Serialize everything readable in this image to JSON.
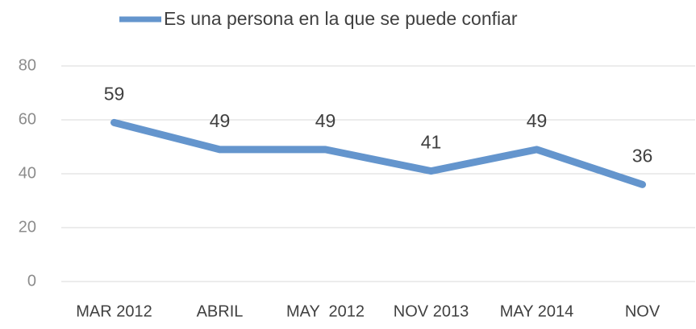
{
  "chart_data": {
    "type": "line",
    "categories": [
      "MAR 2012",
      "ABRIL",
      "MAY  2012",
      "NOV 2013",
      "MAY 2014",
      "NOV"
    ],
    "series": [
      {
        "name": "Es una persona en la que se puede confiar",
        "color": "#6495cd",
        "values": [
          59,
          49,
          49,
          41,
          49,
          36
        ]
      }
    ],
    "ylim": [
      0,
      80
    ],
    "yticks": [
      0,
      20,
      40,
      60,
      80
    ],
    "grid": true,
    "legend": "top"
  }
}
